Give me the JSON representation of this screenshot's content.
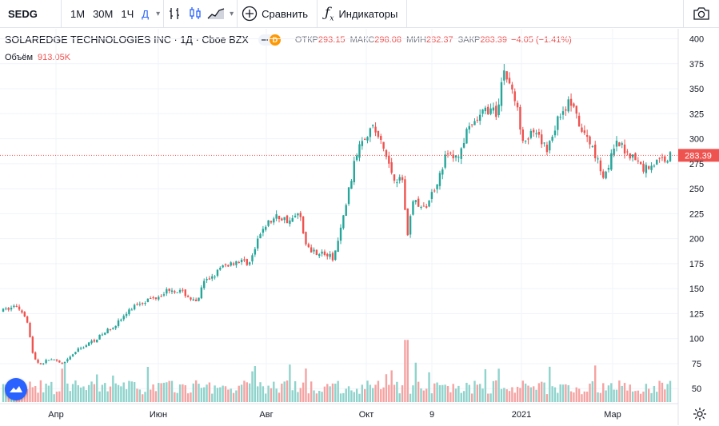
{
  "toolbar": {
    "symbol": "SEDG",
    "intervals": [
      "1М",
      "30М",
      "1Ч",
      "Д"
    ],
    "active_interval": "Д",
    "compare_label": "Сравнить",
    "indicators_label": "Индикаторы",
    "icons": [
      "bar-style-icon",
      "candles-icon",
      "area-style-icon",
      "plus-circle-icon",
      "fx-icon",
      "camera-icon",
      "chevron-down-icon"
    ]
  },
  "legend": {
    "title": "SOLAREDGE TECHNOLOGIES INC · 1Д · Cboe BZX",
    "badge": "D",
    "open_label": "ОТКР",
    "open": "293.15",
    "high_label": "МАКС",
    "high": "298.08",
    "low_label": "МИН",
    "low": "282.37",
    "close_label": "ЗАКР",
    "close": "283.39",
    "change": "−4.05 (−1.41%)",
    "volume_label": "Объём",
    "volume": "913.05K"
  },
  "colors": {
    "up": "#26a69a",
    "down": "#ef5350",
    "vol_up": "#8fd3cc",
    "vol_down": "#f5a3a2",
    "accent": "#2962ff"
  },
  "chart_data": {
    "type": "candlestick",
    "y_axis": {
      "min": 35,
      "max": 410,
      "ticks": [
        50,
        75,
        100,
        125,
        150,
        175,
        200,
        225,
        250,
        275,
        300,
        325,
        350,
        375,
        400
      ]
    },
    "x_ticks": [
      "Апр",
      "Июн",
      "Авг",
      "Окт",
      "9",
      "2021",
      "Мар"
    ],
    "last_price": 283.39,
    "last_price_label": "283.39",
    "series": [
      {
        "name": "SEDG",
        "t": 0.0,
        "anchors": [
          [
            0.0,
            128
          ],
          [
            0.02,
            133
          ],
          [
            0.035,
            122
          ],
          [
            0.045,
            82
          ],
          [
            0.055,
            74
          ],
          [
            0.07,
            80
          ],
          [
            0.09,
            74
          ],
          [
            0.11,
            88
          ],
          [
            0.14,
            100
          ],
          [
            0.17,
            115
          ],
          [
            0.2,
            135
          ],
          [
            0.23,
            142
          ],
          [
            0.25,
            150
          ],
          [
            0.27,
            146
          ],
          [
            0.29,
            135
          ],
          [
            0.3,
            155
          ],
          [
            0.33,
            172
          ],
          [
            0.35,
            178
          ],
          [
            0.37,
            176
          ],
          [
            0.39,
            212
          ],
          [
            0.41,
            222
          ],
          [
            0.43,
            218
          ],
          [
            0.445,
            225
          ],
          [
            0.455,
            190
          ],
          [
            0.48,
            185
          ],
          [
            0.495,
            180
          ],
          [
            0.505,
            205
          ],
          [
            0.52,
            255
          ],
          [
            0.535,
            300
          ],
          [
            0.555,
            312
          ],
          [
            0.57,
            290
          ],
          [
            0.585,
            262
          ],
          [
            0.6,
            258
          ],
          [
            0.605,
            200
          ],
          [
            0.615,
            240
          ],
          [
            0.63,
            228
          ],
          [
            0.645,
            248
          ],
          [
            0.665,
            285
          ],
          [
            0.68,
            280
          ],
          [
            0.695,
            305
          ],
          [
            0.71,
            318
          ],
          [
            0.725,
            330
          ],
          [
            0.74,
            325
          ],
          [
            0.75,
            370
          ],
          [
            0.765,
            345
          ],
          [
            0.78,
            300
          ],
          [
            0.795,
            305
          ],
          [
            0.815,
            290
          ],
          [
            0.835,
            325
          ],
          [
            0.85,
            338
          ],
          [
            0.865,
            310
          ],
          [
            0.885,
            290
          ],
          [
            0.9,
            262
          ],
          [
            0.92,
            295
          ],
          [
            0.94,
            285
          ],
          [
            0.96,
            270
          ],
          [
            1.0,
            283
          ]
        ]
      }
    ],
    "volume_ylim": [
      0,
      2.2
    ]
  }
}
